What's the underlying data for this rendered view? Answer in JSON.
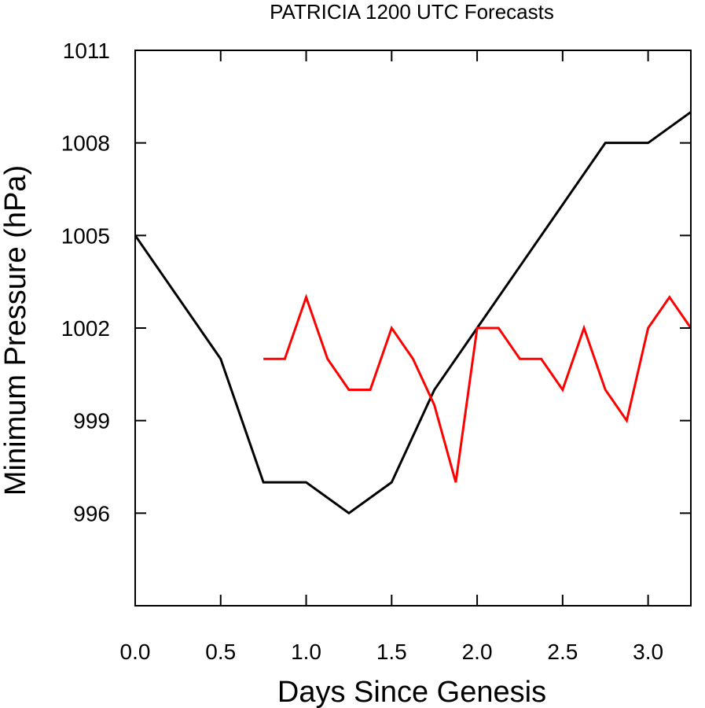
{
  "chart_data": {
    "type": "line",
    "title": "PATRICIA 1200 UTC Forecasts",
    "xlabel": "Days Since Genesis",
    "ylabel": "Minimum Pressure (hPa)",
    "xlim": [
      0,
      3.25
    ],
    "ylim": [
      993,
      1011
    ],
    "x_ticks": [
      0.0,
      0.5,
      1.0,
      1.5,
      2.0,
      2.5,
      3.0
    ],
    "x_tick_labels": [
      "0.0",
      "0.5",
      "1.0",
      "1.5",
      "2.0",
      "2.5",
      "3.0"
    ],
    "y_ticks": [
      996,
      999,
      1002,
      1005,
      1008,
      1011
    ],
    "y_tick_labels": [
      "996",
      "999",
      "1002",
      "1005",
      "1008",
      "1011"
    ],
    "grid": false,
    "series": [
      {
        "color": "#000000",
        "x": [
          0.0,
          0.5,
          0.75,
          1.0,
          1.25,
          1.5,
          1.75,
          2.0,
          2.25,
          2.5,
          2.75,
          3.0,
          3.25
        ],
        "y": [
          1005,
          1001,
          997,
          997,
          996,
          997,
          1000,
          1002,
          1004,
          1006,
          1008,
          1008,
          1009
        ]
      },
      {
        "color": "#ff0000",
        "x": [
          0.75,
          0.875,
          1.0,
          1.125,
          1.25,
          1.375,
          1.5,
          1.625,
          1.75,
          1.875,
          2.0,
          2.125,
          2.25,
          2.375,
          2.5,
          2.625,
          2.75,
          2.875,
          3.0,
          3.125,
          3.25
        ],
        "y": [
          1001,
          1001,
          1003,
          1001,
          1000,
          1000,
          1002,
          1001,
          999.5,
          997,
          1002,
          1002,
          1001,
          1001,
          1000,
          1002,
          1000,
          999,
          1002,
          1003,
          1002
        ]
      }
    ]
  }
}
